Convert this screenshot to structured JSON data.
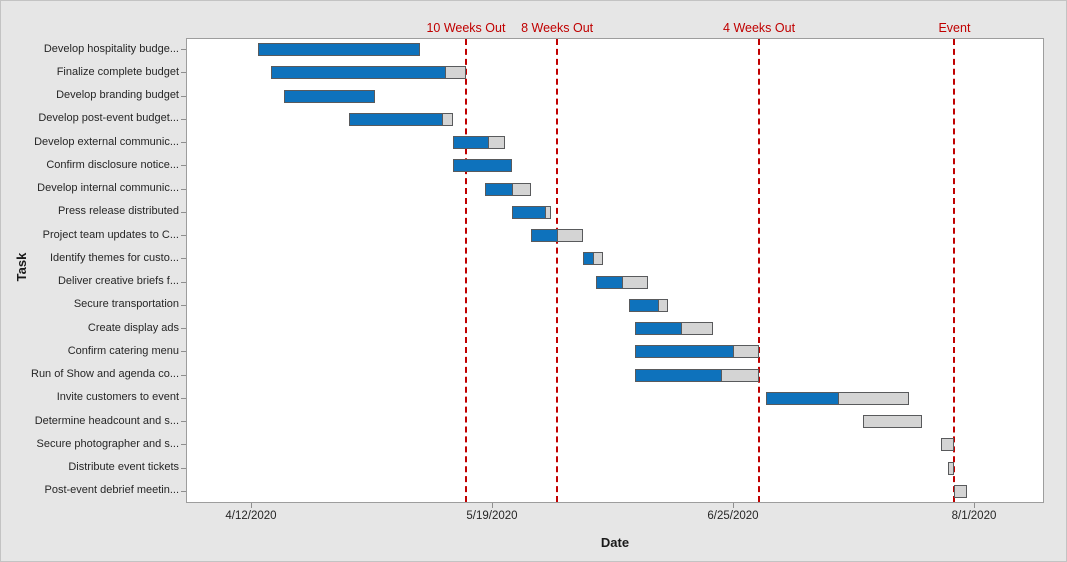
{
  "chart_data": {
    "type": "gantt",
    "title": "",
    "x_axis": {
      "label": "Date",
      "tick_labels": [
        "4/12/2020",
        "5/19/2020",
        "6/25/2020",
        "8/1/2020"
      ],
      "visible_range": [
        "4/2/2020",
        "8/12/2020"
      ],
      "grid": false
    },
    "y_axis": {
      "label": "Task"
    },
    "reference_lines": [
      {
        "label": "10 Weeks Out",
        "date": "5/15/2020"
      },
      {
        "label": "8 Weeks Out",
        "date": "5/29/2020"
      },
      {
        "label": "4 Weeks Out",
        "date": "6/29/2020"
      },
      {
        "label": "Event",
        "date": "7/29/2020"
      }
    ],
    "tasks": [
      {
        "name": "Develop hospitality budge...",
        "start": "4/13/2020",
        "end": "5/8/2020",
        "percent_complete": 100
      },
      {
        "name": "Finalize complete budget",
        "start": "4/15/2020",
        "end": "5/15/2020",
        "percent_complete": 90
      },
      {
        "name": "Develop branding budget",
        "start": "4/17/2020",
        "end": "5/1/2020",
        "percent_complete": 100
      },
      {
        "name": "Develop post-event budget...",
        "start": "4/27/2020",
        "end": "5/13/2020",
        "percent_complete": 91
      },
      {
        "name": "Develop external communic...",
        "start": "5/13/2020",
        "end": "5/21/2020",
        "percent_complete": 71
      },
      {
        "name": "Confirm disclosure notice...",
        "start": "5/13/2020",
        "end": "5/22/2020",
        "percent_complete": 100
      },
      {
        "name": "Develop internal communic...",
        "start": "5/18/2020",
        "end": "5/25/2020",
        "percent_complete": 61
      },
      {
        "name": "Press release distributed",
        "start": "5/22/2020",
        "end": "5/28/2020",
        "percent_complete": 90
      },
      {
        "name": "Project team updates to C...",
        "start": "5/25/2020",
        "end": "6/2/2020",
        "percent_complete": 52
      },
      {
        "name": "Identify themes for custo...",
        "start": "6/2/2020",
        "end": "6/5/2020",
        "percent_complete": 55
      },
      {
        "name": "Deliver creative briefs f...",
        "start": "6/4/2020",
        "end": "6/12/2020",
        "percent_complete": 51
      },
      {
        "name": "Secure transportation",
        "start": "6/9/2020",
        "end": "6/15/2020",
        "percent_complete": 80
      },
      {
        "name": "Create display ads",
        "start": "6/10/2020",
        "end": "6/22/2020",
        "percent_complete": 60
      },
      {
        "name": "Confirm catering menu",
        "start": "6/10/2020",
        "end": "6/29/2020",
        "percent_complete": 80
      },
      {
        "name": "Run of Show and agenda co...",
        "start": "6/10/2020",
        "end": "6/29/2020",
        "percent_complete": 70
      },
      {
        "name": "Invite customers to event",
        "start": "6/30/2020",
        "end": "7/22/2020",
        "percent_complete": 51
      },
      {
        "name": "Determine headcount and s...",
        "start": "7/15/2020",
        "end": "7/24/2020",
        "percent_complete": 0
      },
      {
        "name": "Secure photographer and s...",
        "start": "7/27/2020",
        "end": "7/29/2020",
        "percent_complete": 0
      },
      {
        "name": "Distribute event tickets",
        "start": "7/28/2020",
        "end": "7/29/2020",
        "percent_complete": 0
      },
      {
        "name": "Post-event debrief meetin...",
        "start": "7/29/2020",
        "end": "7/31/2020",
        "percent_complete": 0
      }
    ],
    "colors": {
      "bar_complete": "#0e72bc",
      "bar_incomplete": "#d4d4d4",
      "bar_border": "#595a5c",
      "reference_line": "#c00000",
      "axis_text": "#262626"
    }
  }
}
